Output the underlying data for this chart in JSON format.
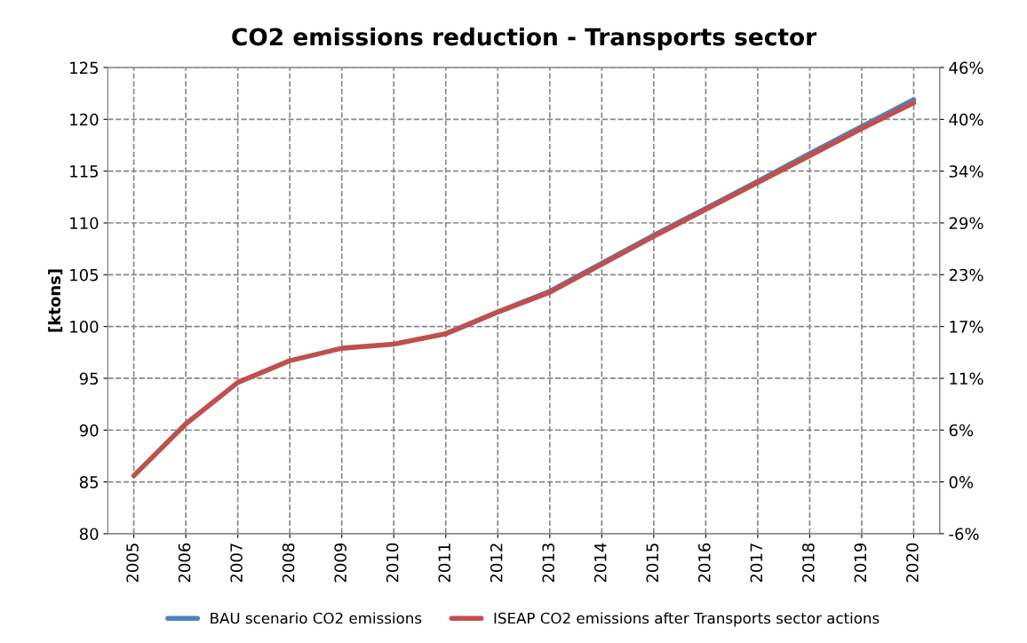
{
  "chart_data": {
    "type": "line",
    "title": "CO2 emissions reduction - Transports sector",
    "ylabel": "[ktons]",
    "categories": [
      "2005",
      "2006",
      "2007",
      "2008",
      "2009",
      "2010",
      "2011",
      "2012",
      "2013",
      "2014",
      "2015",
      "2016",
      "2017",
      "2018",
      "2019",
      "2020"
    ],
    "series": [
      {
        "name": "BAU scenario CO2 emissions",
        "color": "#4f81bd",
        "values": [
          null,
          null,
          null,
          null,
          null,
          null,
          99.3,
          101.4,
          103.4,
          106.1,
          108.8,
          111.4,
          114.0,
          116.7,
          119.3,
          121.9
        ]
      },
      {
        "name": "ISEAP CO2 emissions after Transports sector actions",
        "color": "#c0504d",
        "values": [
          85.6,
          90.6,
          94.6,
          96.7,
          97.9,
          98.3,
          99.3,
          101.4,
          103.3,
          106.0,
          108.7,
          111.3,
          113.9,
          116.5,
          119.1,
          121.6
        ]
      }
    ],
    "ylim": [
      80,
      125
    ],
    "yticks": [
      80,
      85,
      90,
      95,
      100,
      105,
      110,
      115,
      120,
      125
    ],
    "y2lim": [
      -6,
      46
    ],
    "y2ticks": [
      {
        "value": -6,
        "label": "-6%"
      },
      {
        "value": -0.22,
        "label": "0%"
      },
      {
        "value": 5.56,
        "label": "6%"
      },
      {
        "value": 11.33,
        "label": "11%"
      },
      {
        "value": 17.11,
        "label": "17%"
      },
      {
        "value": 22.89,
        "label": "23%"
      },
      {
        "value": 28.67,
        "label": "29%"
      },
      {
        "value": 34.44,
        "label": "34%"
      },
      {
        "value": 40.22,
        "label": "40%"
      },
      {
        "value": 46,
        "label": "46%"
      }
    ],
    "grid": true,
    "legend": "bottom",
    "marker": "none",
    "line_style": "solid"
  }
}
